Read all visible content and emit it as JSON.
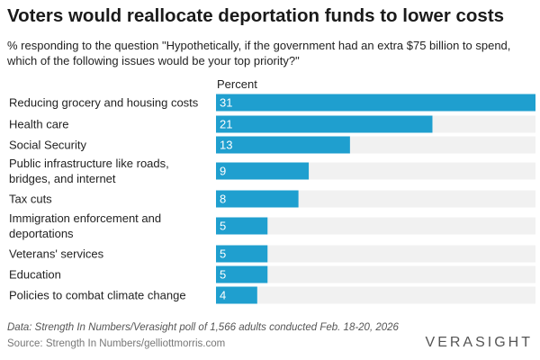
{
  "chart_data": {
    "type": "bar",
    "orientation": "horizontal",
    "title": "Voters would reallocate deportation funds to lower costs",
    "subtitle": "% responding to the question \"Hypothetically, if the government had an extra $75 billion to spend, which of the following issues would be your top priority?\"",
    "value_header": "Percent",
    "categories": [
      [
        "Reducing grocery and housing costs"
      ],
      [
        "Health care"
      ],
      [
        "Social Security"
      ],
      [
        "Public infrastructure like roads,",
        "bridges, and internet"
      ],
      [
        "Tax cuts"
      ],
      [
        "Immigration enforcement and",
        "deportations"
      ],
      [
        "Veterans' services"
      ],
      [
        "Education"
      ],
      [
        "Policies to combat climate change"
      ]
    ],
    "values": [
      31,
      21,
      13,
      9,
      8,
      5,
      5,
      5,
      4
    ],
    "xlim": [
      0,
      31
    ],
    "bar_color": "#1f9fcf",
    "track_color": "#f1f1f1",
    "label_color": "#ffffff"
  },
  "footer": {
    "note": "Data: Strength In Numbers/Verasight poll of 1,566 adults conducted Feb. 18-20, 2026",
    "source": "Source: Strength In Numbers/gelliottmorris.com",
    "logo": "VERASIGHT"
  }
}
